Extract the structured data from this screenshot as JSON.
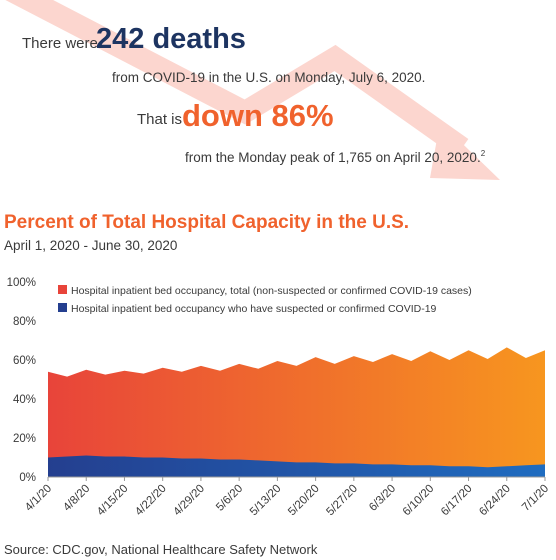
{
  "header": {
    "line1_pre": "There were",
    "line1_big": "242 deaths",
    "line2": "from COVID-19 in the U.S. on Monday, July 6, 2020.",
    "line3_pre": "That is",
    "line3_big": "down 86%",
    "line4": "from the Monday peak of 1,765 on April 20, 2020.",
    "line4_note": "2"
  },
  "chart_data": {
    "type": "area",
    "title": "Percent of Total Hospital Capacity in the U.S.",
    "subtitle": "April 1, 2020 - June 30, 2020",
    "categories": [
      "4/1/20",
      null,
      "4/8/20",
      null,
      "4/15/20",
      null,
      "4/22/20",
      null,
      "4/29/20",
      null,
      "5/6/20",
      null,
      "5/13/20",
      null,
      "5/20/20",
      null,
      "5/27/20",
      null,
      "6/3/20",
      null,
      "6/10/20",
      null,
      "6/17/20",
      null,
      "6/24/20",
      null,
      "7/1/20"
    ],
    "series": [
      {
        "name": "Hospital inpatient bed occupancy, total (non-suspected or confirmed COVID-19 cases)",
        "color": "#e8443a",
        "color_end": "#f7961f",
        "values": [
          54,
          51.5,
          55,
          52.5,
          54.5,
          53,
          56,
          54,
          57,
          54.5,
          58,
          55.5,
          59.5,
          57,
          61.5,
          58,
          62,
          59,
          63,
          59.5,
          64.5,
          60,
          65,
          60.5,
          66.5,
          61,
          65
        ]
      },
      {
        "name": "Hospital inpatient bed occupancy who have suspected or confirmed COVID-19",
        "color": "#243f8f",
        "color_end": "#1f6cc0",
        "values": [
          10,
          10.5,
          11,
          10.5,
          10.5,
          10,
          10,
          9.5,
          9.5,
          9,
          9,
          8.5,
          8,
          7.5,
          7.5,
          7,
          7,
          6.5,
          6.5,
          6,
          6,
          5.5,
          5.5,
          5,
          5.5,
          6,
          6.5
        ]
      }
    ],
    "ylim": [
      0,
      100
    ],
    "yticks": [
      {
        "value": 0,
        "label": "0%"
      },
      {
        "value": 20,
        "label": "20%"
      },
      {
        "value": 40,
        "label": "40%"
      },
      {
        "value": 60,
        "label": "60%"
      },
      {
        "value": 80,
        "label": "80%"
      },
      {
        "value": 100,
        "label": "100%"
      }
    ],
    "grid": false
  },
  "source": "Source: CDC.gov, National Healthcare Safety Network"
}
